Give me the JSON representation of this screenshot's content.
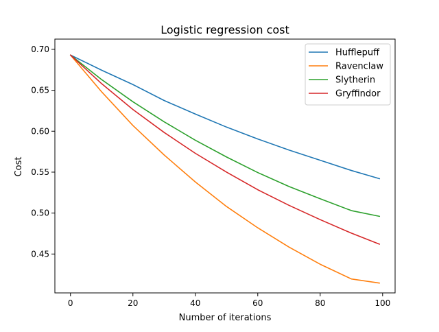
{
  "chart_data": {
    "type": "line",
    "title": "Logistic regression cost",
    "xlabel": "Number of iterations",
    "ylabel": "Cost",
    "xlim": [
      -5,
      104
    ],
    "ylim": [
      0.4025,
      0.7125
    ],
    "x_ticks": [
      0,
      20,
      40,
      60,
      80,
      100
    ],
    "x_tick_labels": [
      "0",
      "20",
      "40",
      "60",
      "80",
      "100"
    ],
    "y_ticks": [
      0.45,
      0.5,
      0.55,
      0.6,
      0.65,
      0.7
    ],
    "y_tick_labels": [
      "0.45",
      "0.50",
      "0.55",
      "0.60",
      "0.65",
      "0.70"
    ],
    "grid": false,
    "legend_position": "top-right",
    "x": [
      0,
      10,
      20,
      30,
      40,
      50,
      60,
      70,
      80,
      90,
      99
    ],
    "series": [
      {
        "name": "Hufflepuff",
        "color": "#1f77b4",
        "values": [
          0.693,
          0.6745,
          0.657,
          0.6375,
          0.621,
          0.605,
          0.5905,
          0.577,
          0.5645,
          0.552,
          0.542
        ]
      },
      {
        "name": "Ravenclaw",
        "color": "#ff7f0e",
        "values": [
          0.693,
          0.648,
          0.607,
          0.571,
          0.538,
          0.508,
          0.482,
          0.4585,
          0.4375,
          0.4195,
          0.4145
        ]
      },
      {
        "name": "Slytherin",
        "color": "#2ca02c",
        "values": [
          0.693,
          0.663,
          0.636,
          0.6115,
          0.589,
          0.5685,
          0.5495,
          0.5325,
          0.5175,
          0.503,
          0.496
        ]
      },
      {
        "name": "Gryffindor",
        "color": "#d62728",
        "values": [
          0.693,
          0.658,
          0.6265,
          0.5985,
          0.573,
          0.55,
          0.5285,
          0.5095,
          0.492,
          0.4755,
          0.462
        ]
      }
    ]
  }
}
